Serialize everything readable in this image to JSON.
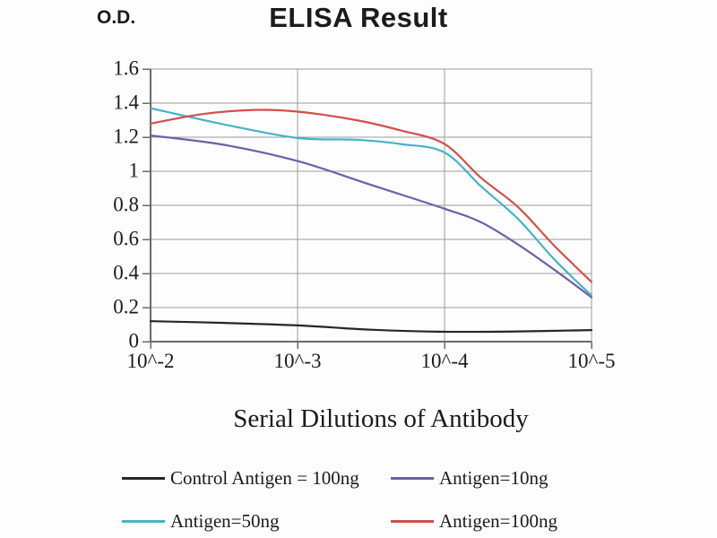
{
  "page": {
    "background": "#fdfdfd"
  },
  "header": {
    "title": "ELISA Result",
    "y_axis_label": "O.D."
  },
  "colors": {
    "grid": "#9b9b9b",
    "axis": "#6a6a6a",
    "text": "#1b1b1b"
  },
  "chart_data": {
    "type": "line",
    "title": "ELISA Result",
    "xlabel": "Serial Dilutions of Antibody",
    "ylabel": "O.D.",
    "grid": true,
    "legend_position": "bottom",
    "ylim": [
      0,
      1.6
    ],
    "y_ticks": [
      {
        "value": 1.6,
        "label": "1.6"
      },
      {
        "value": 1.4,
        "label": "1.4"
      },
      {
        "value": 1.2,
        "label": "1.2"
      },
      {
        "value": 1.0,
        "label": "1"
      },
      {
        "value": 0.8,
        "label": "0.8"
      },
      {
        "value": 0.6,
        "label": "0.6"
      },
      {
        "value": 0.4,
        "label": "0.4"
      },
      {
        "value": 0.2,
        "label": "0.2"
      },
      {
        "value": 0.0,
        "label": "0"
      }
    ],
    "x_ticks": [
      {
        "pos": 0,
        "label": "10^-2"
      },
      {
        "pos": 1,
        "label": "10^-3"
      },
      {
        "pos": 2,
        "label": "10^-4"
      },
      {
        "pos": 3,
        "label": "10^-5"
      }
    ],
    "series": [
      {
        "name": "Control Antigen = 100ng",
        "color": "#262626",
        "od_at_ticks": [
          0.12,
          0.1,
          0.06,
          0.07
        ],
        "points": [
          [
            0,
            0.12
          ],
          [
            0.5,
            0.11
          ],
          [
            1,
            0.095
          ],
          [
            1.5,
            0.07
          ],
          [
            2,
            0.058
          ],
          [
            2.5,
            0.06
          ],
          [
            3,
            0.068
          ]
        ]
      },
      {
        "name": "Antigen=10ng",
        "color": "#6f5fa5",
        "od_at_ticks": [
          1.21,
          1.06,
          0.78,
          0.26
        ],
        "points": [
          [
            0,
            1.21
          ],
          [
            0.5,
            1.155
          ],
          [
            1,
            1.06
          ],
          [
            1.5,
            0.92
          ],
          [
            2,
            0.78
          ],
          [
            2.25,
            0.7
          ],
          [
            2.5,
            0.57
          ],
          [
            2.75,
            0.42
          ],
          [
            3,
            0.26
          ]
        ]
      },
      {
        "name": "Antigen=50ng",
        "color": "#45b3c6",
        "od_at_ticks": [
          1.37,
          1.19,
          1.11,
          0.27
        ],
        "points": [
          [
            0,
            1.37
          ],
          [
            0.5,
            1.275
          ],
          [
            1,
            1.195
          ],
          [
            1.4,
            1.185
          ],
          [
            1.7,
            1.16
          ],
          [
            2,
            1.11
          ],
          [
            2.25,
            0.91
          ],
          [
            2.5,
            0.72
          ],
          [
            2.75,
            0.48
          ],
          [
            3,
            0.27
          ]
        ]
      },
      {
        "name": "Antigen=100ng",
        "color": "#d24f4c",
        "od_at_ticks": [
          1.28,
          1.35,
          1.16,
          0.35
        ],
        "points": [
          [
            0,
            1.28
          ],
          [
            0.35,
            1.335
          ],
          [
            0.7,
            1.36
          ],
          [
            1,
            1.35
          ],
          [
            1.4,
            1.3
          ],
          [
            1.7,
            1.24
          ],
          [
            2,
            1.16
          ],
          [
            2.25,
            0.96
          ],
          [
            2.5,
            0.79
          ],
          [
            2.75,
            0.56
          ],
          [
            3,
            0.35
          ]
        ]
      }
    ]
  }
}
